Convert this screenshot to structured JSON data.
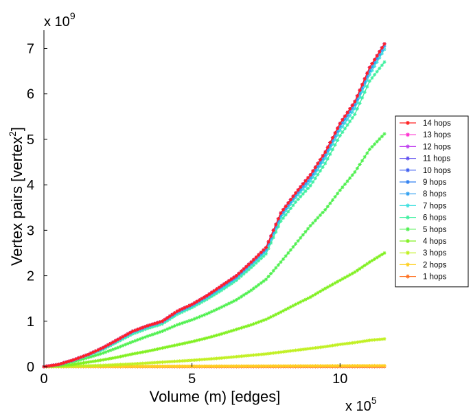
{
  "chart_data": {
    "type": "line",
    "title": "",
    "xlabel": "Volume (m) [edges]",
    "ylabel_prefix": "Vertex pairs [vertex",
    "ylabel_sup": "2",
    "ylabel_suffix": "]",
    "x_multiplier": "x 10",
    "x_multiplier_exp": "5",
    "y_multiplier": "x 10",
    "y_multiplier_exp": "9",
    "x_tick_labels": [
      "0",
      "5",
      "10"
    ],
    "y_tick_labels": [
      "0",
      "1",
      "2",
      "3",
      "4",
      "5",
      "6",
      "7"
    ],
    "xlim": [
      0,
      11.5
    ],
    "ylim": [
      0,
      7.4
    ],
    "x_ticks": [
      0,
      5,
      10
    ],
    "y_ticks": [
      0,
      1,
      2,
      3,
      4,
      5,
      6,
      7
    ],
    "units_note": "x in units of 1e5 edges; y in units of 1e9 vertex^2",
    "x": [
      0,
      0.5,
      1,
      1.5,
      2,
      2.5,
      3,
      3.5,
      4,
      4.5,
      5,
      5.5,
      6,
      6.5,
      7,
      7.5,
      8,
      8.5,
      9,
      9.5,
      10,
      10.5,
      11,
      11.5
    ],
    "legend_position": "right",
    "series": [
      {
        "name": "14 hops",
        "color": "#ff2020",
        "values": [
          0,
          0.05,
          0.15,
          0.27,
          0.42,
          0.6,
          0.78,
          0.9,
          1.0,
          1.22,
          1.37,
          1.56,
          1.78,
          2.0,
          2.3,
          2.62,
          3.38,
          3.82,
          4.22,
          4.72,
          5.35,
          5.83,
          6.58,
          7.1
        ]
      },
      {
        "name": "13 hops",
        "color": "#ff30d0",
        "values": [
          0,
          0.05,
          0.15,
          0.27,
          0.42,
          0.6,
          0.78,
          0.9,
          1.0,
          1.22,
          1.37,
          1.56,
          1.78,
          2.0,
          2.3,
          2.62,
          3.38,
          3.82,
          4.22,
          4.72,
          5.35,
          5.83,
          6.58,
          7.1
        ]
      },
      {
        "name": "12 hops",
        "color": "#c040f0",
        "values": [
          0,
          0.05,
          0.15,
          0.27,
          0.42,
          0.6,
          0.78,
          0.9,
          1.0,
          1.22,
          1.37,
          1.56,
          1.78,
          2.0,
          2.3,
          2.62,
          3.38,
          3.82,
          4.22,
          4.72,
          5.35,
          5.83,
          6.58,
          7.1
        ]
      },
      {
        "name": "11 hops",
        "color": "#6050f0",
        "values": [
          0,
          0.05,
          0.15,
          0.27,
          0.42,
          0.6,
          0.78,
          0.9,
          1.0,
          1.22,
          1.37,
          1.56,
          1.78,
          2.0,
          2.3,
          2.62,
          3.38,
          3.82,
          4.22,
          4.72,
          5.35,
          5.83,
          6.58,
          7.1
        ]
      },
      {
        "name": "10 hops",
        "color": "#4060f0",
        "values": [
          0,
          0.05,
          0.15,
          0.27,
          0.42,
          0.6,
          0.78,
          0.9,
          1.0,
          1.22,
          1.37,
          1.56,
          1.78,
          2.0,
          2.3,
          2.62,
          3.38,
          3.82,
          4.22,
          4.72,
          5.35,
          5.83,
          6.58,
          7.1
        ]
      },
      {
        "name": "9 hops",
        "color": "#3080f0",
        "values": [
          0,
          0.05,
          0.15,
          0.27,
          0.42,
          0.6,
          0.78,
          0.9,
          1.0,
          1.22,
          1.37,
          1.56,
          1.78,
          2.0,
          2.3,
          2.62,
          3.38,
          3.82,
          4.22,
          4.72,
          5.35,
          5.83,
          6.58,
          7.1
        ]
      },
      {
        "name": "8 hops",
        "color": "#30a0f0",
        "values": [
          0,
          0.05,
          0.15,
          0.27,
          0.41,
          0.59,
          0.77,
          0.89,
          0.99,
          1.2,
          1.35,
          1.54,
          1.75,
          1.97,
          2.27,
          2.58,
          3.33,
          3.77,
          4.15,
          4.65,
          5.28,
          5.76,
          6.5,
          7.05
        ]
      },
      {
        "name": "7 hops",
        "color": "#40e0e0",
        "values": [
          0,
          0.05,
          0.14,
          0.26,
          0.4,
          0.58,
          0.75,
          0.87,
          0.97,
          1.18,
          1.33,
          1.52,
          1.72,
          1.94,
          2.24,
          2.54,
          3.28,
          3.72,
          4.08,
          4.58,
          5.2,
          5.68,
          6.42,
          6.98
        ]
      },
      {
        "name": "6 hops",
        "color": "#40f0a0",
        "values": [
          0,
          0.05,
          0.14,
          0.25,
          0.38,
          0.55,
          0.72,
          0.84,
          0.94,
          1.15,
          1.3,
          1.48,
          1.68,
          1.9,
          2.18,
          2.48,
          3.2,
          3.62,
          3.98,
          4.47,
          5.08,
          5.55,
          6.28,
          6.7
        ]
      },
      {
        "name": "5 hops",
        "color": "#50f050",
        "values": [
          0,
          0.04,
          0.11,
          0.2,
          0.3,
          0.42,
          0.55,
          0.67,
          0.78,
          0.92,
          1.03,
          1.16,
          1.31,
          1.47,
          1.68,
          1.92,
          2.3,
          2.7,
          3.1,
          3.45,
          3.88,
          4.28,
          4.78,
          5.12
        ]
      },
      {
        "name": "4 hops",
        "color": "#80f020",
        "values": [
          0,
          0.02,
          0.05,
          0.1,
          0.15,
          0.21,
          0.28,
          0.34,
          0.41,
          0.48,
          0.55,
          0.63,
          0.72,
          0.82,
          0.92,
          1.04,
          1.2,
          1.37,
          1.53,
          1.72,
          1.9,
          2.08,
          2.3,
          2.5
        ]
      },
      {
        "name": "3 hops",
        "color": "#c0f020",
        "values": [
          0,
          0.005,
          0.012,
          0.02,
          0.03,
          0.045,
          0.06,
          0.08,
          0.1,
          0.12,
          0.14,
          0.165,
          0.19,
          0.22,
          0.25,
          0.28,
          0.32,
          0.36,
          0.4,
          0.44,
          0.49,
          0.53,
          0.58,
          0.61
        ]
      },
      {
        "name": "2 hops",
        "color": "#ffd020",
        "values": [
          0,
          0.001,
          0.002,
          0.003,
          0.004,
          0.005,
          0.006,
          0.007,
          0.008,
          0.009,
          0.01,
          0.011,
          0.012,
          0.013,
          0.014,
          0.015,
          0.016,
          0.017,
          0.018,
          0.019,
          0.02,
          0.021,
          0.022,
          0.023
        ]
      },
      {
        "name": "1 hops",
        "color": "#ff7020",
        "values": [
          0,
          0,
          0,
          0,
          0,
          0,
          0,
          0,
          0,
          0,
          0,
          0,
          0,
          0,
          0,
          0,
          0,
          0,
          0,
          0,
          0,
          0,
          0,
          0
        ]
      }
    ]
  }
}
